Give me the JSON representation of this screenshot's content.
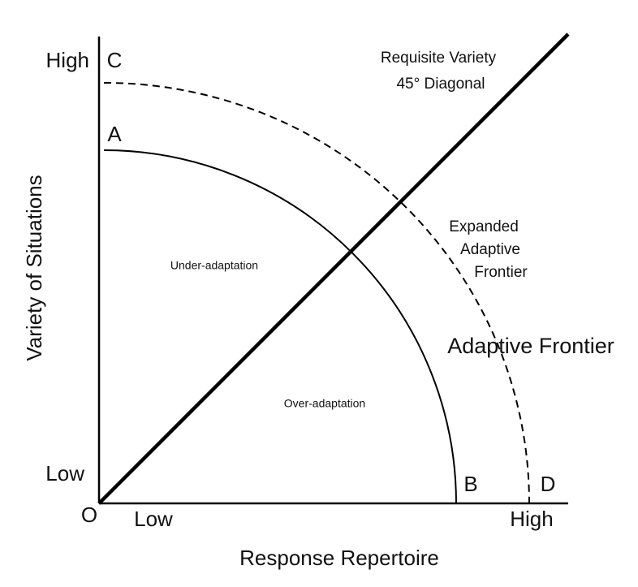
{
  "axes": {
    "y_title": "Variety of Situations",
    "x_title": "Response Repertoire",
    "y_high": "High",
    "y_low": "Low",
    "x_low": "Low",
    "x_high": "High",
    "origin": "O"
  },
  "points": {
    "c": "C",
    "a": "A",
    "b": "B",
    "d": "D"
  },
  "labels": {
    "diagonal": [
      "Requisite Variety",
      "45° Diagonal"
    ],
    "expanded_frontier": [
      "Expanded",
      "Adaptive",
      "Frontier"
    ],
    "adaptive_frontier": "Adaptive Frontier",
    "under": "Under-adaptation",
    "over": "Over-adaptation"
  }
}
